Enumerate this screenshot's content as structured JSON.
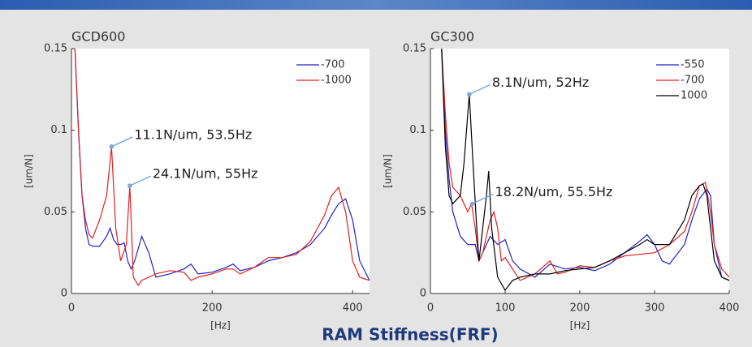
{
  "chart_data": [
    {
      "type": "line",
      "title": "GCD600",
      "xlabel": "[Hz]",
      "ylabel": "[um/N]",
      "xlim": [
        0,
        424
      ],
      "ylim": [
        0,
        0.15
      ],
      "xticks": [
        0,
        200,
        400
      ],
      "yticks": [
        0,
        0.05,
        0.1,
        0.15
      ],
      "legend": "upper right",
      "series": [
        {
          "name": "-700",
          "color": "#2222cc",
          "x": [
            5,
            10,
            15,
            20,
            25,
            30,
            40,
            50,
            55,
            60,
            65,
            70,
            75,
            80,
            85,
            90,
            100,
            110,
            120,
            140,
            160,
            170,
            180,
            200,
            220,
            230,
            240,
            260,
            280,
            300,
            320,
            340,
            360,
            370,
            380,
            390,
            400,
            410,
            424
          ],
          "values": [
            0.15,
            0.1,
            0.06,
            0.04,
            0.03,
            0.029,
            0.029,
            0.035,
            0.04,
            0.033,
            0.03,
            0.03,
            0.031,
            0.02,
            0.015,
            0.02,
            0.035,
            0.025,
            0.01,
            0.012,
            0.015,
            0.018,
            0.012,
            0.013,
            0.016,
            0.018,
            0.014,
            0.016,
            0.02,
            0.022,
            0.025,
            0.03,
            0.04,
            0.048,
            0.055,
            0.058,
            0.045,
            0.02,
            0.008
          ]
        },
        {
          "name": "-1000",
          "color": "#e02020",
          "x": [
            5,
            10,
            15,
            20,
            25,
            30,
            40,
            50,
            57,
            63,
            70,
            78,
            83,
            88,
            95,
            100,
            110,
            120,
            140,
            160,
            170,
            180,
            200,
            220,
            230,
            240,
            260,
            280,
            300,
            320,
            340,
            360,
            370,
            380,
            390,
            400,
            410,
            424
          ],
          "values": [
            0.15,
            0.1,
            0.06,
            0.045,
            0.036,
            0.034,
            0.045,
            0.06,
            0.09,
            0.04,
            0.02,
            0.03,
            0.066,
            0.01,
            0.005,
            0.008,
            0.01,
            0.012,
            0.014,
            0.013,
            0.008,
            0.01,
            0.012,
            0.015,
            0.015,
            0.012,
            0.016,
            0.022,
            0.022,
            0.024,
            0.032,
            0.048,
            0.06,
            0.065,
            0.05,
            0.02,
            0.01,
            0.008
          ]
        }
      ],
      "annotations": [
        {
          "text": "11.1N/um, 53.5Hz",
          "x": 57,
          "y": 0.09
        },
        {
          "text": "24.1N/um, 55Hz",
          "x": 83,
          "y": 0.066
        }
      ]
    },
    {
      "type": "line",
      "title": "GC300",
      "xlabel": "[Hz]",
      "ylabel": "[um/N]",
      "xlim": [
        0,
        400
      ],
      "ylim": [
        0,
        0.15
      ],
      "xticks": [
        0,
        100,
        200,
        300,
        400
      ],
      "yticks": [
        0,
        0.05,
        0.1,
        0.15
      ],
      "legend": "upper right",
      "series": [
        {
          "name": "-550",
          "color": "#2222cc",
          "x": [
            15,
            20,
            25,
            30,
            40,
            50,
            60,
            65,
            70,
            80,
            90,
            100,
            110,
            120,
            140,
            160,
            180,
            200,
            220,
            240,
            260,
            280,
            290,
            300,
            310,
            320,
            340,
            350,
            360,
            370,
            375,
            380,
            390,
            400
          ],
          "values": [
            0.15,
            0.1,
            0.07,
            0.05,
            0.035,
            0.03,
            0.03,
            0.02,
            0.025,
            0.035,
            0.03,
            0.033,
            0.02,
            0.015,
            0.01,
            0.018,
            0.015,
            0.016,
            0.014,
            0.018,
            0.025,
            0.032,
            0.036,
            0.03,
            0.02,
            0.018,
            0.03,
            0.045,
            0.058,
            0.064,
            0.06,
            0.03,
            0.01,
            0.008
          ]
        },
        {
          "name": "-700",
          "color": "#e02020",
          "x": [
            15,
            20,
            25,
            30,
            40,
            50,
            55,
            60,
            65,
            70,
            80,
            85,
            90,
            95,
            100,
            110,
            120,
            140,
            160,
            170,
            180,
            200,
            220,
            240,
            260,
            280,
            300,
            320,
            340,
            350,
            360,
            368,
            375,
            380,
            390,
            400
          ],
          "values": [
            0.15,
            0.11,
            0.08,
            0.065,
            0.06,
            0.05,
            0.055,
            0.04,
            0.02,
            0.025,
            0.045,
            0.05,
            0.04,
            0.02,
            0.022,
            0.015,
            0.008,
            0.012,
            0.02,
            0.012,
            0.013,
            0.017,
            0.016,
            0.02,
            0.023,
            0.024,
            0.025,
            0.03,
            0.038,
            0.05,
            0.066,
            0.068,
            0.05,
            0.03,
            0.015,
            0.01
          ]
        },
        {
          "name": "1000",
          "color": "#000000",
          "x": [
            15,
            20,
            25,
            30,
            40,
            45,
            52,
            57,
            62,
            65,
            70,
            75,
            78,
            82,
            90,
            100,
            110,
            120,
            140,
            160,
            180,
            200,
            220,
            240,
            260,
            280,
            290,
            300,
            320,
            340,
            350,
            360,
            365,
            370,
            375,
            380,
            390,
            400
          ],
          "values": [
            0.15,
            0.09,
            0.06,
            0.055,
            0.06,
            0.08,
            0.122,
            0.08,
            0.04,
            0.02,
            0.04,
            0.06,
            0.075,
            0.04,
            0.01,
            0.002,
            0.008,
            0.01,
            0.012,
            0.012,
            0.014,
            0.015,
            0.016,
            0.02,
            0.025,
            0.03,
            0.033,
            0.03,
            0.03,
            0.045,
            0.06,
            0.066,
            0.067,
            0.06,
            0.04,
            0.02,
            0.01,
            0.008
          ]
        }
      ],
      "annotations": [
        {
          "text": "8.1N/um, 52Hz",
          "x": 52,
          "y": 0.122
        },
        {
          "text": "18.2N/um, 55.5Hz",
          "x": 56,
          "y": 0.055
        }
      ]
    }
  ],
  "caption": "RAM Stiffness(FRF)"
}
